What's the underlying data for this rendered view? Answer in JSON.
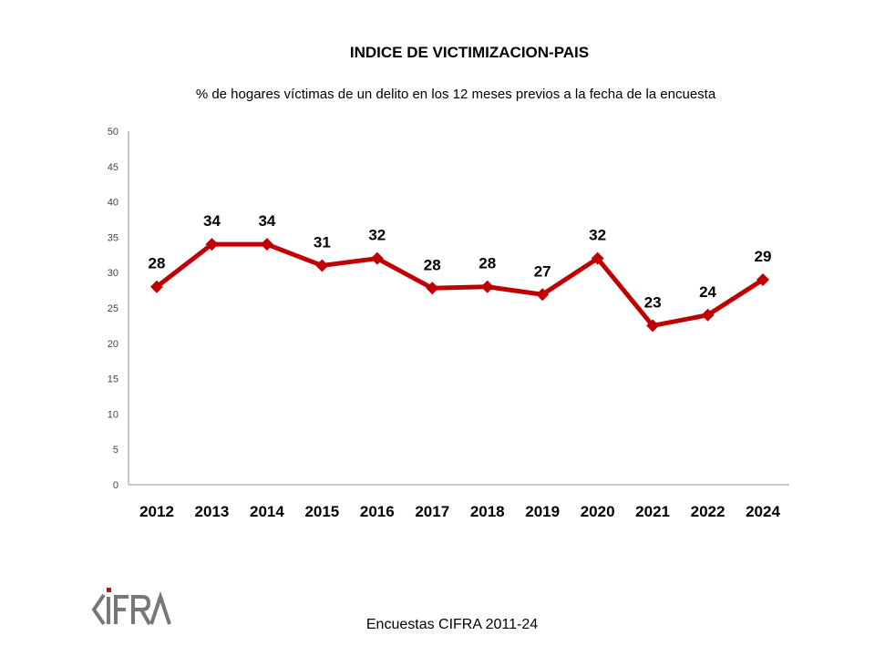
{
  "chart_data": {
    "type": "line",
    "title": "INDICE DE VICTIMIZACION-PAIS",
    "subtitle": "% de hogares víctimas de un delito en los 12 meses previos a la fecha de la encuesta",
    "categories": [
      "2012",
      "2013",
      "2014",
      "2015",
      "2016",
      "2017",
      "2018",
      "2019",
      "2020",
      "2021",
      "2022",
      "2024"
    ],
    "series": [
      {
        "name": "Índice de victimización",
        "values": [
          28,
          34,
          34,
          31,
          32,
          27.8,
          28,
          26.9,
          32,
          22.5,
          24,
          29
        ]
      }
    ],
    "data_labels": [
      "28",
      "34",
      "34",
      "31",
      "32",
      "28",
      "28",
      "27",
      "32",
      "23",
      "24",
      "29"
    ],
    "yticks": [
      0,
      5,
      10,
      15,
      20,
      25,
      30,
      35,
      40,
      45,
      50
    ],
    "ylim": [
      0,
      50
    ],
    "xlabel": "",
    "ylabel": "",
    "grid": false,
    "legend": "none",
    "color": "#C00000"
  },
  "source": "Encuestas CIFRA 2011-24",
  "logo_text": "CIFRA"
}
